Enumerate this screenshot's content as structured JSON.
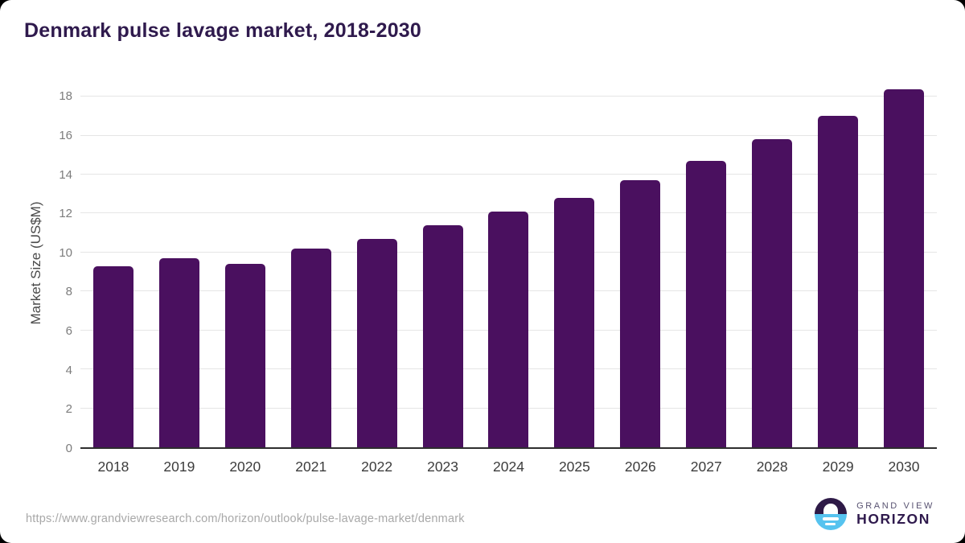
{
  "title": "Denmark pulse lavage market, 2018-2030",
  "chart_data": {
    "type": "bar",
    "title": "Denmark pulse lavage market, 2018-2030",
    "categories": [
      "2018",
      "2019",
      "2020",
      "2021",
      "2022",
      "2023",
      "2024",
      "2025",
      "2026",
      "2027",
      "2028",
      "2029",
      "2030"
    ],
    "values": [
      9.3,
      9.7,
      9.4,
      10.2,
      10.7,
      11.4,
      12.1,
      12.8,
      13.7,
      14.7,
      15.8,
      17.0,
      18.4
    ],
    "xlabel": "",
    "ylabel": "Market Size (US$M)",
    "ylim": [
      0,
      19
    ],
    "yticks": [
      0,
      2,
      4,
      6,
      8,
      10,
      12,
      14,
      16,
      18
    ],
    "grid": true,
    "legend": "none",
    "bar_color": "#4a105f"
  },
  "colors": {
    "title_text": "#2f1a4d",
    "bar": "#4a105f",
    "gridline": "#e5e5e5",
    "axis_line": "#2e2e2e",
    "logo_blue": "#56c3ef",
    "logo_purple": "#2e1a47"
  },
  "footer": {
    "source_url": "https://www.grandviewresearch.com/horizon/outlook/pulse-lavage-market/denmark",
    "logo": {
      "line1": "GRAND VIEW",
      "line2": "HORIZON"
    }
  }
}
